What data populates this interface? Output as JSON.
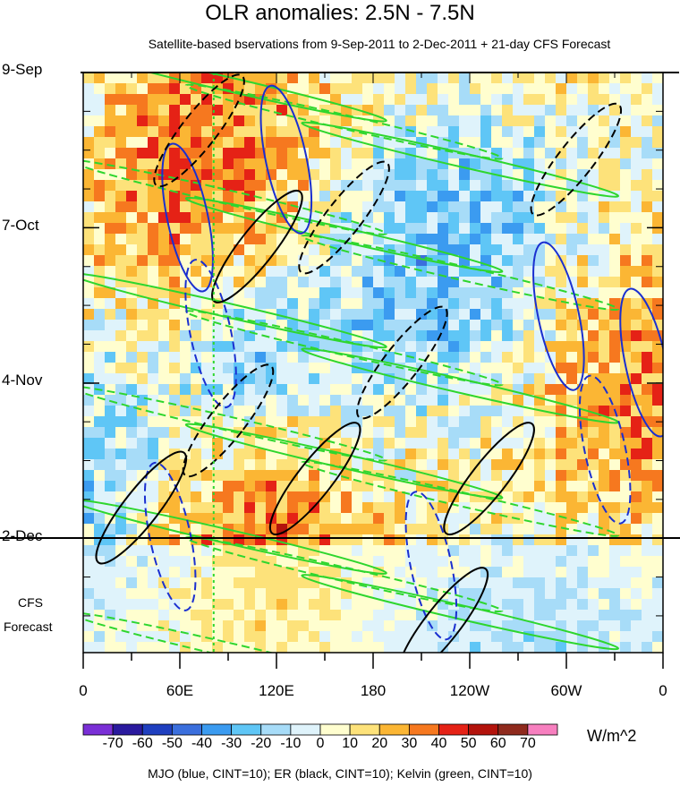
{
  "chart_data": {
    "type": "heatmap",
    "title": "OLR anomalies: 2.5N - 7.5N",
    "subtitle": "Satellite-based bservations from 9-Sep-2011 to 2-Dec-2011 + 21-day CFS Forecast",
    "x_ticks": [
      "0",
      "60E",
      "120E",
      "180",
      "120W",
      "60W",
      "0"
    ],
    "y_ticks": [
      "9-Sep",
      "7-Oct",
      "4-Nov",
      "2-Dec"
    ],
    "forecast_label": [
      "CFS",
      "Forecast"
    ],
    "colorbar": {
      "labels": [
        "-70",
        "-60",
        "-50",
        "-40",
        "-30",
        "-20",
        "-10",
        "0",
        "10",
        "20",
        "30",
        "40",
        "50",
        "60",
        "70"
      ],
      "colors": [
        "#7a2fd6",
        "#2a1a9e",
        "#1f3fbf",
        "#3b6fdd",
        "#3b9bf0",
        "#5fc6f6",
        "#a7dcf8",
        "#dff3fb",
        "#fffecf",
        "#fde27a",
        "#fbb634",
        "#f6781f",
        "#e52216",
        "#b3130c",
        "#8f2a1d",
        "#f77fbf"
      ],
      "units": "W/m^2"
    },
    "contours": {
      "label": "MJO (blue, CINT=10); ER (black, CINT=10); Kelvin (green, CINT=10)",
      "mjo_color": "#1a2fd0",
      "er_color": "#000000",
      "kelvin_color": "#2ed62e"
    },
    "grid": false
  }
}
